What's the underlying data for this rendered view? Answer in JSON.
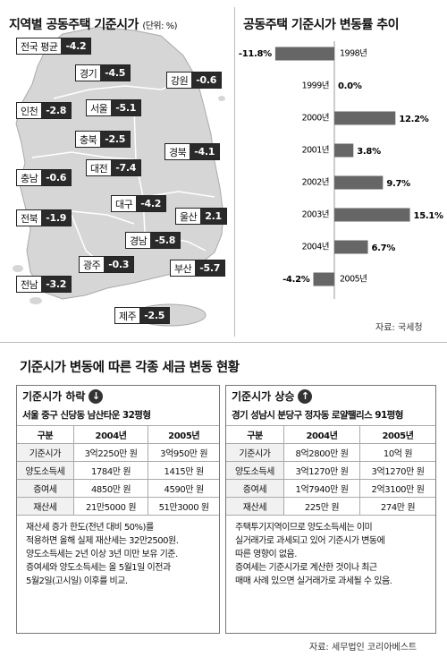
{
  "map": {
    "title": "지역별 공동주택 기준시가",
    "unit": "(단위: %)",
    "regions": [
      {
        "name": "전국 평균",
        "value": "-4.2"
      },
      {
        "name": "경기",
        "value": "-4.5"
      },
      {
        "name": "강원",
        "value": "-0.6"
      },
      {
        "name": "인천",
        "value": "-2.8"
      },
      {
        "name": "서울",
        "value": "-5.1"
      },
      {
        "name": "충북",
        "value": "-2.5"
      },
      {
        "name": "경북",
        "value": "-4.1"
      },
      {
        "name": "충남",
        "value": "-0.6"
      },
      {
        "name": "대전",
        "value": "-7.4"
      },
      {
        "name": "대구",
        "value": "-4.2"
      },
      {
        "name": "전북",
        "value": "-1.9"
      },
      {
        "name": "울산",
        "value": "2.1"
      },
      {
        "name": "경남",
        "value": "-5.8"
      },
      {
        "name": "광주",
        "value": "-0.3"
      },
      {
        "name": "부산",
        "value": "-5.7"
      },
      {
        "name": "전남",
        "value": "-3.2"
      },
      {
        "name": "제주",
        "value": "-2.5"
      }
    ]
  },
  "chart_data": {
    "type": "bar",
    "title": "공동주택 기준시가 변동률 추이",
    "categories": [
      "1998년",
      "1999년",
      "2000년",
      "2001년",
      "2002년",
      "2003년",
      "2004년",
      "2005년"
    ],
    "values": [
      -11.8,
      0.0,
      12.2,
      3.8,
      9.7,
      15.1,
      6.7,
      -4.2
    ],
    "value_labels": [
      "-11.8%",
      "0.0%",
      "12.2%",
      "3.8%",
      "9.7%",
      "15.1%",
      "6.7%",
      "-4.2%"
    ],
    "orientation": "horizontal",
    "source": "자료: 국세청"
  },
  "section": {
    "title": "기준시가 변동에 따른 각종 세금 변동 현황",
    "source": "자료: 세무법인 코리아베스트"
  },
  "down": {
    "title": "기준시가 하락",
    "icon": "↓",
    "place": "서울 중구 신당동 남산타운 32평형",
    "headers": [
      "구분",
      "2004년",
      "2005년"
    ],
    "rows": [
      [
        "기준시가",
        "3억2250만 원",
        "3억950만 원"
      ],
      [
        "양도소득세",
        "1784만 원",
        "1415만 원"
      ],
      [
        "증여세",
        "4850만 원",
        "4590만 원"
      ],
      [
        "재산세",
        "21만5000 원",
        "51만3000 원"
      ]
    ],
    "notes": [
      "재산세 증가 한도(전년 대비 50%)를",
      "적용하면 올해 실제 재산세는 32만2500원.",
      "양도소득세는 2년 이상 3년 미만 보유 기준.",
      "증여세와 양도소득세는 올 5월1일 이전과",
      "5월2일(고시일) 이후를 비교."
    ]
  },
  "up": {
    "title": "기준시가 상승",
    "icon": "↑",
    "place": "경기 성남시 분당구 정자동 로얄팰리스 91평형",
    "headers": [
      "구분",
      "2004년",
      "2005년"
    ],
    "rows": [
      [
        "기준시가",
        "8억2800만 원",
        "10억 원"
      ],
      [
        "양도소득세",
        "3억1270만 원",
        "3억1270만 원"
      ],
      [
        "증여세",
        "1억7940만 원",
        "2억3100만 원"
      ],
      [
        "재산세",
        "225만 원",
        "274만 원"
      ]
    ],
    "notes": [
      "주택투기지역이므로 양도소득세는 이미",
      "실거래가로 과세되고 있어 기준시가 변동에",
      "따른 영향이 없음.",
      "증여세는 기준시가로 계산한 것이나 최근",
      "매매 사례 있으면 실거래가로 과세될 수 있음."
    ]
  }
}
